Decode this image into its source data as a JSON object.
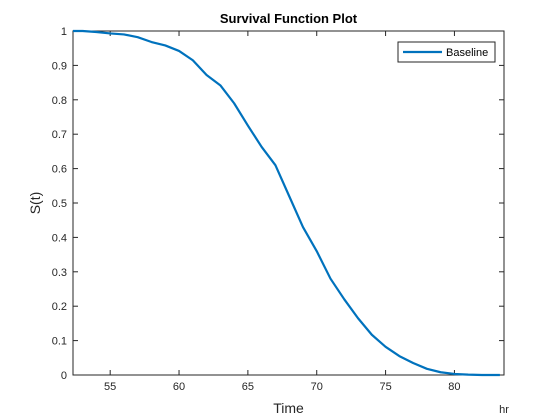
{
  "chart_data": {
    "type": "line",
    "title": "Survival Function Plot",
    "xlabel": "Time",
    "ylabel": "S(t)",
    "x_unit": "hr",
    "xlim": [
      52.3,
      83.6
    ],
    "ylim": [
      0,
      1
    ],
    "xticks": [
      55,
      60,
      65,
      70,
      75,
      80
    ],
    "yticks": [
      0,
      0.1,
      0.2,
      0.3,
      0.4,
      0.5,
      0.6,
      0.7,
      0.8,
      0.9,
      1
    ],
    "grid": false,
    "legend_position": "top-right",
    "series": [
      {
        "name": "Baseline",
        "color": "#0072BD",
        "x": [
          52.3,
          53.0,
          54.0,
          55.0,
          56.0,
          57.0,
          58.0,
          59.0,
          60.0,
          61.0,
          62.0,
          63.0,
          64.0,
          65.0,
          66.0,
          67.0,
          68.0,
          69.0,
          70.0,
          71.0,
          72.0,
          73.0,
          74.0,
          75.0,
          76.0,
          77.0,
          78.0,
          79.0,
          80.0,
          81.0,
          82.0,
          83.3
        ],
        "y": [
          1.0,
          1.0,
          0.997,
          0.993,
          0.99,
          0.982,
          0.968,
          0.958,
          0.942,
          0.915,
          0.872,
          0.842,
          0.79,
          0.725,
          0.663,
          0.61,
          0.52,
          0.43,
          0.36,
          0.28,
          0.22,
          0.165,
          0.117,
          0.082,
          0.055,
          0.035,
          0.018,
          0.008,
          0.003,
          0.001,
          0.0,
          0.0
        ]
      }
    ]
  }
}
